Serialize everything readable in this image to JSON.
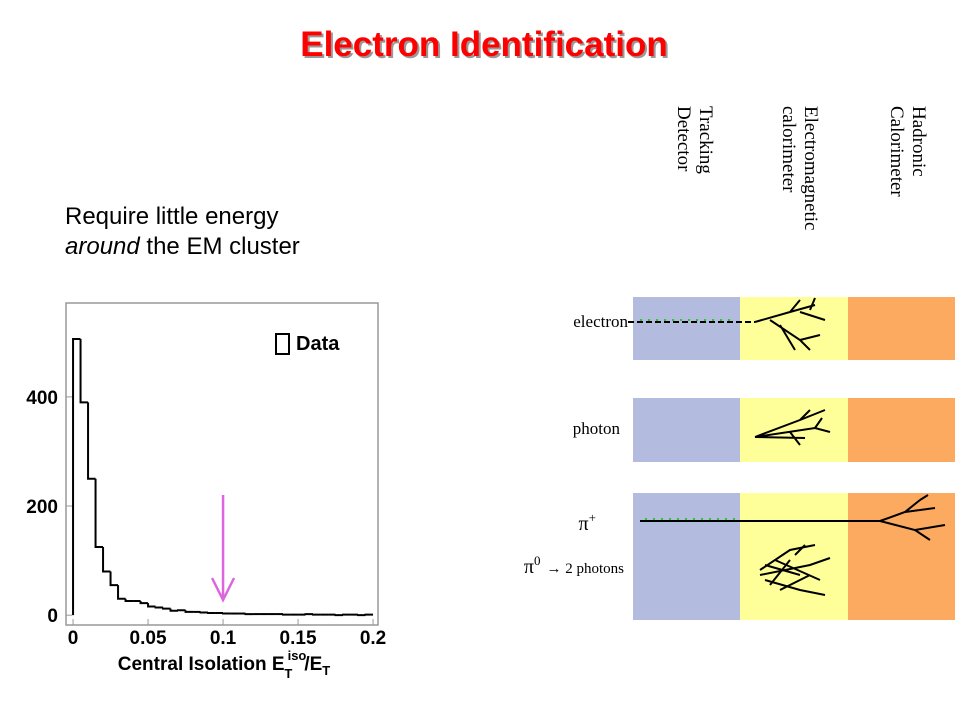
{
  "title": "Electron Identification",
  "text": {
    "line1": "Require little energy",
    "line2_italic": "around",
    "line2_rest": "the EM cluster"
  },
  "chart_data": {
    "type": "histogram",
    "xlabel": {
      "main": "Central Isolation E",
      "sup": "iso",
      "sub": "T",
      "tail": "/E",
      "tail_sub": "T"
    },
    "legend": "Data",
    "bins": [
      0,
      0.005,
      0.01,
      0.015,
      0.02,
      0.025,
      0.03,
      0.035,
      0.04,
      0.045,
      0.05,
      0.055,
      0.06,
      0.065,
      0.07,
      0.075,
      0.08,
      0.085,
      0.09,
      0.095,
      0.1,
      0.105,
      0.11,
      0.115,
      0.12,
      0.125,
      0.13,
      0.135,
      0.14,
      0.145,
      0.15,
      0.155,
      0.16,
      0.165,
      0.17,
      0.175,
      0.18,
      0.185,
      0.19,
      0.195,
      0.2
    ],
    "counts": [
      506,
      390,
      250,
      125,
      80,
      55,
      30,
      26,
      26,
      22,
      16,
      14,
      12,
      8,
      9,
      6,
      6,
      5,
      4,
      4,
      3,
      3,
      3,
      2,
      2,
      2,
      2,
      2,
      1,
      1,
      1,
      2,
      1,
      1,
      1,
      0,
      1,
      1,
      0,
      1
    ],
    "cut": 0.1,
    "xlim": [
      -0.0047,
      0.2033
    ],
    "ylim": [
      -18,
      572
    ],
    "xticks": [
      0,
      0.05,
      0.1,
      0.15,
      0.2
    ],
    "yticks": [
      0,
      200,
      400
    ],
    "color": "#000000",
    "cut_color": "#dd66dd"
  },
  "diagram": {
    "columns": [
      [
        "Tracking",
        "Detector"
      ],
      [
        "Electromagnetic",
        "calorimeter"
      ],
      [
        "Hadronic",
        "Calorimeter"
      ]
    ],
    "rows": {
      "electron": "electron",
      "photon": "photon",
      "pi_plus": "π",
      "pi_plus_sup": "+",
      "pi_zero": "π",
      "pi_zero_sup": "0",
      "pi_zero_rest": "→ 2 photons"
    }
  }
}
